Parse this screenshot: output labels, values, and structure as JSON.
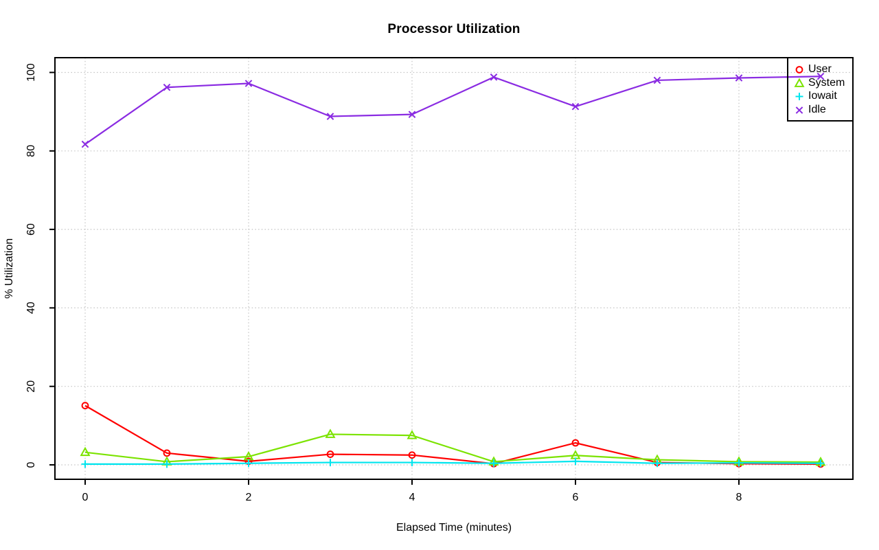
{
  "chart_data": {
    "type": "line",
    "title": "Processor Utilization",
    "xlabel": "Elapsed Time (minutes)",
    "ylabel": "% Utilization",
    "x": [
      0,
      1,
      2,
      3,
      4,
      5,
      6,
      7,
      8,
      9
    ],
    "xlim": [
      0,
      9
    ],
    "ylim": [
      0,
      100
    ],
    "x_ticks": [
      0,
      2,
      4,
      6,
      8
    ],
    "y_ticks": [
      0,
      20,
      40,
      60,
      80,
      100
    ],
    "grid": true,
    "grid_style": "dotted",
    "grid_color": "#c2c2c2",
    "axis_color": "#000000",
    "background_color": "#ffffff",
    "legend_position": "top-right",
    "series": [
      {
        "name": "User",
        "color": "#ff0000",
        "marker": "circle",
        "values": [
          15.1,
          3.0,
          0.9,
          2.7,
          2.5,
          0.3,
          5.6,
          0.6,
          0.3,
          0.2
        ]
      },
      {
        "name": "System",
        "color": "#7be300",
        "marker": "triangle",
        "values": [
          3.2,
          0.8,
          2.1,
          7.8,
          7.5,
          0.8,
          2.4,
          1.3,
          0.8,
          0.7
        ]
      },
      {
        "name": "Iowait",
        "color": "#00e5ee",
        "marker": "plus",
        "values": [
          0.2,
          0.2,
          0.4,
          0.6,
          0.6,
          0.4,
          0.9,
          0.4,
          0.5,
          0.4
        ]
      },
      {
        "name": "Idle",
        "color": "#8a2be2",
        "marker": "x",
        "values": [
          81.7,
          96.2,
          97.2,
          88.8,
          89.3,
          98.8,
          91.3,
          98.0,
          98.6,
          99.0
        ]
      }
    ]
  }
}
